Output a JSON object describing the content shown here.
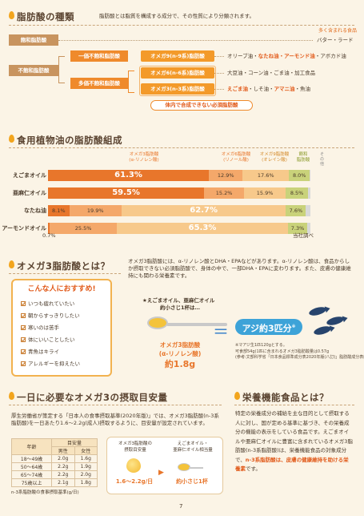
{
  "section1": {
    "title": "脂肪酸の種類",
    "intro": "脂肪酸とは脂質を構成する成分で、その性質により分類されます。",
    "legend": "多く含まれる食品",
    "saturated": "飽和脂肪酸",
    "saturated_food": "バター・ラード",
    "unsaturated": "不飽和脂肪酸",
    "mono": "一価不飽和脂肪酸",
    "omega9": "オメガ9(n-9系)脂肪酸",
    "omega9_food_pre": "オリーブ油・",
    "omega9_food_hi": "なたね油・アーモンド油",
    "omega9_food_post": "・アボカド油",
    "poly": "多価不飽和脂肪酸",
    "omega6": "オメガ6(n-6系)脂肪酸",
    "omega6_food": "大豆油・コーン油・ごま油・加工食品",
    "omega3": "オメガ3(n-3系)脂肪酸",
    "omega3_food_hi1": "えごま油",
    "omega3_food_mid": "・しそ油・",
    "omega3_food_hi2": "アマニ油",
    "omega3_food_post": "・魚油",
    "essential": "体内で合成できない必須脂肪酸"
  },
  "section2": {
    "title": "食用植物油の脂肪酸組成",
    "headers": {
      "omega3": "オメガ3脂肪酸",
      "omega3_sub": "(α-リノレン酸)",
      "omega6": "オメガ6脂肪酸",
      "omega6_sub": "(リノール酸)",
      "omega9": "オメガ9脂肪酸",
      "omega9_sub": "(オレイン酸)",
      "saturated": "飽和",
      "saturated_sub": "脂肪酸",
      "other": "その他"
    },
    "source": "当社調べ",
    "footnote": "0.7%"
  },
  "chart_data": {
    "type": "bar",
    "stacked": true,
    "categories": [
      "えごまオイル",
      "亜麻仁オイル",
      "なたね油",
      "アーモンドオイル"
    ],
    "series": [
      {
        "name": "オメガ3脂肪酸(α-リノレン酸)",
        "color": "#e8762b",
        "values": [
          61.3,
          59.5,
          8.1,
          0.7
        ]
      },
      {
        "name": "オメガ6脂肪酸(リノール酸)",
        "color": "#f4a86a",
        "values": [
          12.9,
          15.2,
          19.9,
          25.5
        ]
      },
      {
        "name": "オメガ9脂肪酸(オレイン酸)",
        "color": "#f7c98b",
        "values": [
          17.6,
          15.9,
          62.7,
          65.3
        ]
      },
      {
        "name": "飽和脂肪酸",
        "color": "#c9d27a",
        "values": [
          8.0,
          8.5,
          7.6,
          7.3
        ]
      },
      {
        "name": "その他",
        "color": "#d9d9d9",
        "values": [
          0.2,
          0.9,
          1.7,
          1.2
        ]
      }
    ],
    "labels": [
      [
        "61.3%",
        "12.9%",
        "17.6%",
        "8.0%",
        ""
      ],
      [
        "59.5%",
        "15.2%",
        "15.9%",
        "8.5%",
        ""
      ],
      [
        "8.1%",
        "19.9%",
        "62.7%",
        "7.6%",
        ""
      ],
      [
        "",
        "25.5%",
        "65.3%",
        "7.3%",
        ""
      ]
    ]
  },
  "section3": {
    "title": "オメガ3脂肪酸とは？",
    "body": "オメガ3脂肪酸には、α-リノレン酸とDHA・EPAなどがあります。α-リノレン酸は、食品からしか摂取できない必須脂肪酸で、身体の中で、一部DHA・EPAに変わります。また、皮膚の健康維持にも関わる栄養素です。",
    "recommend_title": "こんな人におすすめ!",
    "checks": [
      "いつも疲れていたい",
      "朝からすっきりしたい",
      "寒いのは苦手",
      "体にいいことしたい",
      "青魚はキライ",
      "アレルギーを抑えたい"
    ],
    "spoon_text1": "★えごまオイル、亜麻仁オイル",
    "spoon_text2": "約小さじ1杯は…",
    "equals": "＝",
    "aji": "アジ約3匹分",
    "aji_mark": "※",
    "omega_box1": "オメガ3脂肪酸",
    "omega_box2": "(α-リノレン酸)",
    "omega_box3": "約1.8g",
    "note1": "※マアジ生1匹120gとする。",
    "note2": "可食部54g(1匹に含まれるオメガ3脂肪酸量は0.57g",
    "note3": "(参考:文部科学省「日本食品標準成分表2020年版(八訂)」脂肪酸成分表編)"
  },
  "section4": {
    "title": "一日に必要なオメガ3の摂取目安量",
    "body": "厚生労働省が策定する「日本人の食事摂取基準(2020年版)」では、オメガ3脂肪酸(n-3系脂肪酸)を一日あたり1.6〜2.2g(成人)摂取するように、目安量が設定されています。",
    "table_header": [
      "年齢",
      "目安量",
      "男性",
      "女性"
    ],
    "table_rows": [
      [
        "18〜49歳",
        "2.0g",
        "1.6g"
      ],
      [
        "50〜64歳",
        "2.2g",
        "1.9g"
      ],
      [
        "65〜74歳",
        "2.2g",
        "2.0g"
      ],
      [
        "75歳以上",
        "2.1g",
        "1.8g"
      ]
    ],
    "table_note": "n-3系脂肪酸の食事摂取基準(g/日)",
    "bubble1_a": "オメガ3脂肪酸の",
    "bubble1_b": "摂取目安量",
    "bubble1_val": "1.6〜2.2g/日",
    "bubble2_a": "えごまオイル・",
    "bubble2_b": "亜麻仁オイル相当量",
    "bubble2_val": "約小さじ1杯"
  },
  "section5": {
    "title": "栄養機能食品とは？",
    "body": "特定の栄養成分の補給を主な目的として摂取する人に対し、国が定める基準に基づき、その栄養成分の機能の表示をしている食品です。えごまオイルや亜麻仁オイルに豊富に含まれているオメガ3脂肪酸(n-3系脂肪酸)は、栄養機能食品の対象成分で、",
    "body_hi": "n-3系脂肪酸は、皮膚の健康維持を助ける栄養素",
    "body_end": "です。"
  },
  "page_number": "7"
}
